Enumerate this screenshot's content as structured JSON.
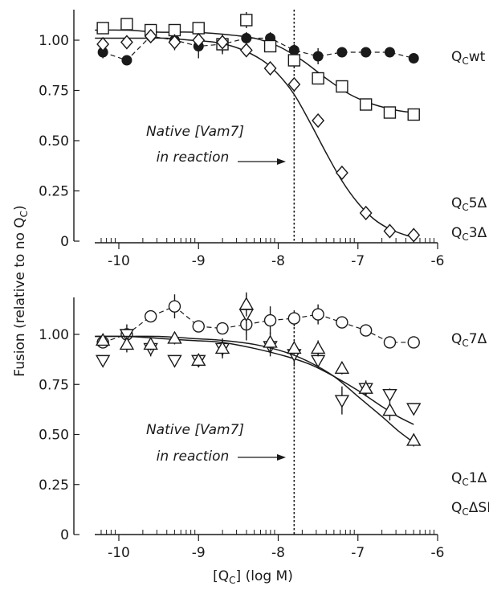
{
  "figure": {
    "ylabel_main": "Fusion (relative to no Q",
    "ylabel_sub": "C",
    "ylabel_close": ")",
    "xlabel_pre": "[Q",
    "xlabel_sub": "C",
    "xlabel_post": "] (log M)"
  },
  "chart_data": [
    {
      "type": "scatter",
      "panel": "top",
      "xlim": [
        -10.35,
        -6.0
      ],
      "ylim": [
        0,
        1.15
      ],
      "xticks": [
        -10,
        -9,
        -8,
        -7,
        -6
      ],
      "xtick_labels": [
        "-10",
        "-9",
        "-8",
        "-7",
        "-6"
      ],
      "yticks": [
        0,
        0.25,
        0.5,
        0.75,
        1.0
      ],
      "ytick_labels": [
        "0",
        "0.25",
        "0.50",
        "0.75",
        "1.00"
      ],
      "grid": false,
      "vline_x": -7.8,
      "annotation": {
        "line1": "Native [Vam7]",
        "line2": "in reaction"
      },
      "series": [
        {
          "name": "QCwt",
          "label_main": "Q",
          "label_sub": "C",
          "label_tail": "wt",
          "marker": "filled-circle",
          "line": "dashed",
          "x": [
            -10.2,
            -9.9,
            -9.6,
            -9.3,
            -9.0,
            -8.7,
            -8.4,
            -8.1,
            -7.8,
            -7.5,
            -7.2,
            -6.9,
            -6.6,
            -6.3
          ],
          "y": [
            0.94,
            0.9,
            1.02,
            1.0,
            0.97,
            0.98,
            1.01,
            1.01,
            0.95,
            0.92,
            0.94,
            0.94,
            0.94,
            0.91
          ],
          "err": [
            0.03,
            0.02,
            0.03,
            0.04,
            0.06,
            0.04,
            0.03,
            0.03,
            0.03,
            0.04,
            0.02,
            0.02,
            0.02,
            0.02
          ]
        },
        {
          "name": "QC5Δ",
          "label_main": "Q",
          "label_sub": "C",
          "label_tail": "5Δ",
          "marker": "open-square",
          "line": "solid-fit",
          "x": [
            -10.2,
            -9.9,
            -9.6,
            -9.3,
            -9.0,
            -8.7,
            -8.4,
            -8.1,
            -7.8,
            -7.5,
            -7.2,
            -6.9,
            -6.6,
            -6.3
          ],
          "y": [
            1.06,
            1.08,
            1.05,
            1.05,
            1.06,
            0.98,
            1.1,
            0.97,
            0.9,
            0.81,
            0.77,
            0.68,
            0.64,
            0.63
          ],
          "err": [
            0.02,
            0.03,
            0.02,
            0.03,
            0.03,
            0.05,
            0.04,
            0.03,
            0.04,
            0.03,
            0.02,
            0.02,
            0.02,
            0.02
          ],
          "fit_x": [
            -10.3,
            -9.9,
            -9.5,
            -9.1,
            -8.7,
            -8.3,
            -8.0,
            -7.7,
            -7.4,
            -7.1,
            -6.8,
            -6.5,
            -6.3
          ],
          "fit_y": [
            1.05,
            1.05,
            1.04,
            1.04,
            1.03,
            1.01,
            0.97,
            0.9,
            0.81,
            0.73,
            0.68,
            0.65,
            0.64
          ]
        },
        {
          "name": "QC3Δ",
          "label_main": "Q",
          "label_sub": "C",
          "label_tail": "3Δ",
          "marker": "open-diamond",
          "line": "solid-fit",
          "x": [
            -10.2,
            -9.9,
            -9.6,
            -9.3,
            -9.0,
            -8.7,
            -8.4,
            -8.1,
            -7.8,
            -7.5,
            -7.2,
            -6.9,
            -6.6,
            -6.3
          ],
          "y": [
            0.98,
            0.99,
            1.02,
            0.99,
            1.0,
            0.99,
            0.95,
            0.86,
            0.78,
            0.6,
            0.34,
            0.14,
            0.05,
            0.03
          ],
          "err": [
            0.02,
            0.02,
            0.03,
            0.04,
            0.03,
            0.03,
            0.03,
            0.03,
            0.03,
            0.02,
            0.02,
            0.02,
            0.01,
            0.01
          ],
          "fit_x": [
            -10.3,
            -10.0,
            -9.7,
            -9.4,
            -9.1,
            -8.8,
            -8.5,
            -8.2,
            -8.0,
            -7.8,
            -7.6,
            -7.4,
            -7.2,
            -7.0,
            -6.8,
            -6.6,
            -6.4,
            -6.3
          ],
          "fit_y": [
            1.01,
            1.01,
            1.01,
            1.01,
            1.0,
            0.99,
            0.96,
            0.9,
            0.83,
            0.73,
            0.59,
            0.44,
            0.3,
            0.19,
            0.11,
            0.06,
            0.03,
            0.02
          ]
        }
      ]
    },
    {
      "type": "scatter",
      "panel": "bottom",
      "xlim": [
        -10.35,
        -6.0
      ],
      "ylim": [
        0,
        1.2
      ],
      "xticks": [
        -10,
        -9,
        -8,
        -7,
        -6
      ],
      "xtick_labels": [
        "-10",
        "-9",
        "-8",
        "-7",
        "-6"
      ],
      "yticks": [
        0,
        0.25,
        0.5,
        0.75,
        1.0
      ],
      "ytick_labels": [
        "0",
        "0.25",
        "0.50",
        "0.75",
        "1.00"
      ],
      "grid": false,
      "vline_x": -7.8,
      "annotation": {
        "line1": "Native [Vam7]",
        "line2": "in reaction"
      },
      "series": [
        {
          "name": "QC7Δ",
          "label_main": "Q",
          "label_sub": "C",
          "label_tail": "7Δ",
          "marker": "open-circle",
          "line": "dashed",
          "x": [
            -10.2,
            -9.9,
            -9.6,
            -9.3,
            -9.0,
            -8.7,
            -8.4,
            -8.1,
            -7.8,
            -7.5,
            -7.2,
            -6.9,
            -6.6,
            -6.3
          ],
          "y": [
            0.96,
            1.0,
            1.09,
            1.14,
            1.04,
            1.03,
            1.05,
            1.07,
            1.08,
            1.1,
            1.06,
            1.02,
            0.96,
            0.96
          ],
          "err": [
            0.02,
            0.05,
            0.03,
            0.06,
            0.03,
            0.02,
            0.08,
            0.07,
            0.04,
            0.05,
            0.03,
            0.02,
            0.02,
            0.02
          ]
        },
        {
          "name": "QC1Δ",
          "label_main": "Q",
          "label_sub": "C",
          "label_tail": "1Δ",
          "marker": "open-triangle-down",
          "line": "solid-fit",
          "x": [
            -10.2,
            -9.9,
            -9.6,
            -9.3,
            -9.0,
            -8.7,
            -8.4,
            -8.1,
            -7.8,
            -7.5,
            -7.2,
            -6.9,
            -6.6,
            -6.3
          ],
          "y": [
            0.87,
            1.0,
            0.93,
            0.87,
            0.87,
            0.93,
            1.1,
            0.94,
            0.9,
            0.87,
            0.67,
            0.73,
            0.7,
            0.63
          ],
          "err": [
            0.02,
            0.03,
            0.04,
            0.02,
            0.02,
            0.04,
            0.1,
            0.05,
            0.06,
            0.04,
            0.07,
            0.03,
            0.03,
            0.02
          ],
          "fit_x": [
            -10.3,
            -9.9,
            -9.5,
            -9.1,
            -8.7,
            -8.3,
            -7.9,
            -7.6,
            -7.3,
            -7.0,
            -6.7,
            -6.5,
            -6.3
          ],
          "fit_y": [
            0.99,
            0.99,
            0.98,
            0.97,
            0.96,
            0.93,
            0.89,
            0.85,
            0.79,
            0.72,
            0.64,
            0.59,
            0.55
          ]
        },
        {
          "name": "QCΔSD",
          "label_main": "Q",
          "label_sub": "C",
          "label_tail": "ΔSD",
          "marker": "open-triangle-up",
          "line": "solid-fit",
          "x": [
            -10.2,
            -9.9,
            -9.6,
            -9.3,
            -9.0,
            -8.7,
            -8.4,
            -8.1,
            -7.8,
            -7.5,
            -7.2,
            -6.9,
            -6.6,
            -6.3
          ],
          "y": [
            0.97,
            0.95,
            0.95,
            0.98,
            0.87,
            0.93,
            1.15,
            0.96,
            0.93,
            0.93,
            0.83,
            0.73,
            0.62,
            0.47
          ],
          "err": [
            0.02,
            0.04,
            0.03,
            0.03,
            0.02,
            0.05,
            0.06,
            0.05,
            0.03,
            0.04,
            0.03,
            0.04,
            0.05,
            0.03
          ],
          "fit_x": [
            -10.3,
            -9.9,
            -9.5,
            -9.1,
            -8.7,
            -8.3,
            -7.9,
            -7.6,
            -7.3,
            -7.0,
            -6.7,
            -6.5,
            -6.3
          ],
          "fit_y": [
            0.99,
            0.99,
            0.99,
            0.98,
            0.97,
            0.95,
            0.91,
            0.86,
            0.79,
            0.69,
            0.59,
            0.52,
            0.46
          ]
        }
      ]
    }
  ]
}
